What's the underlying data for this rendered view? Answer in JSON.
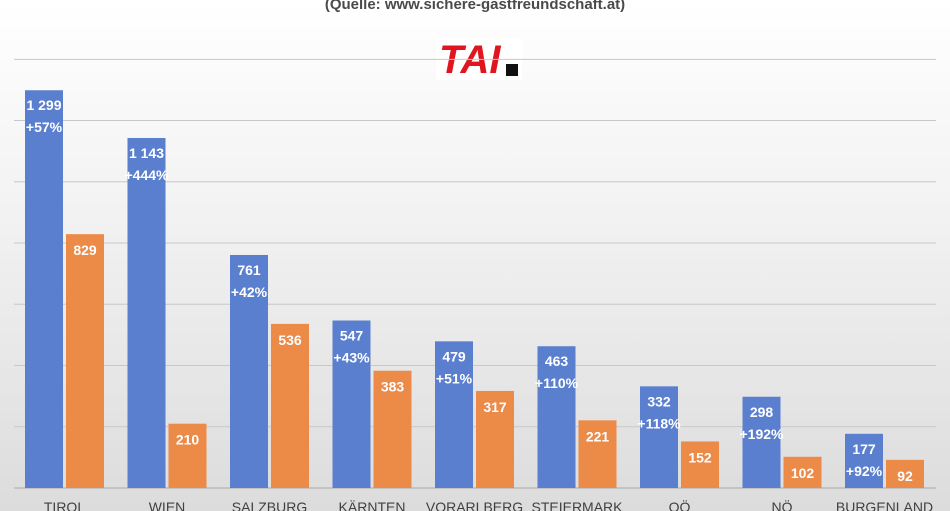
{
  "source_text": "(Quelle: www.sichere-gastfreundschaft.at)",
  "logo_text": "TAI",
  "colors": {
    "series1": "#5b7fcf",
    "series2": "#ec8a48",
    "grid": "#c8c8c8"
  },
  "chart_data": {
    "type": "bar",
    "title": "",
    "categories": [
      "TIROL",
      "WIEN",
      "SALZBURG",
      "KÄRNTEN",
      "VORARLBERG",
      "STEIERMARK",
      "OÖ",
      "NÖ",
      "BURGENLAND"
    ],
    "series": [
      {
        "values": [
          1299,
          1143,
          761,
          547,
          479,
          463,
          332,
          298,
          177
        ],
        "labels": [
          "1 299",
          "1 143",
          "761",
          "547",
          "479",
          "463",
          "332",
          "298",
          "177"
        ],
        "changes": [
          "+57%",
          "+444%",
          "+42%",
          "+43%",
          "+51%",
          "+110%",
          "+118%",
          "+192%",
          "+92%"
        ]
      },
      {
        "values": [
          829,
          210,
          536,
          383,
          317,
          221,
          152,
          102,
          92
        ],
        "labels": [
          "829",
          "210",
          "536",
          "383",
          "317",
          "221",
          "152",
          "102",
          "92"
        ]
      }
    ],
    "ylim": [
      0,
      1400
    ],
    "grid": true,
    "legend": "none"
  }
}
